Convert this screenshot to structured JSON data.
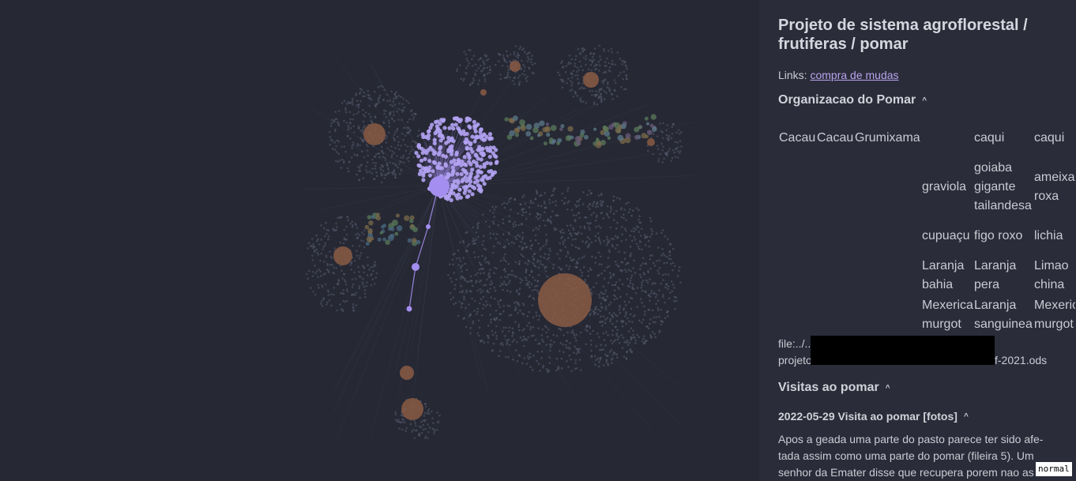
{
  "note": {
    "title": "Projeto de sistema agroflorestal / frutiferas / pomar",
    "links_prefix": "Links:",
    "links_link": "compra de mudas",
    "section1": {
      "heading": "Organizacao do Pomar",
      "caret": "^"
    },
    "grid": [
      [
        "Cacau",
        "Cacau",
        "Grumixama",
        "",
        "caqui",
        "caqui"
      ],
      [
        "",
        "",
        "",
        "graviola",
        "goiaba gigante tailandesa",
        "ameixa roxa"
      ],
      [
        "",
        "",
        "",
        "cupuaçu",
        "figo roxo",
        "lichia"
      ],
      [
        "",
        "",
        "",
        "Laranja bahia",
        "Laranja pera",
        "Limao china"
      ],
      [
        "",
        "",
        "",
        "Mexerica murgot",
        "Laranja sanguinea",
        "Mexerica murgot"
      ]
    ],
    "file_line1": "file:../..",
    "file_line2_start": "projeto",
    "file_line2_end": "f-2021.ods",
    "section2": {
      "heading": "Visitas ao pomar",
      "caret": "^"
    },
    "subsection": {
      "heading": "2022-05-29 Visita ao pomar [fotos]",
      "caret": "^"
    },
    "paragraph": "Apos a geada uma parte do pasto parece ter sido afe-tada assim como uma parte do pomar (fileira 5). Um senhor da Emater disse que recupera porem nao as"
  },
  "mode_badge": "normal",
  "colors": {
    "background": "#262834",
    "panel": "#2a2c39",
    "accent_node": "#a48ef0",
    "hub_node": "#8a5a44",
    "link_color": "#b9a4ee"
  }
}
